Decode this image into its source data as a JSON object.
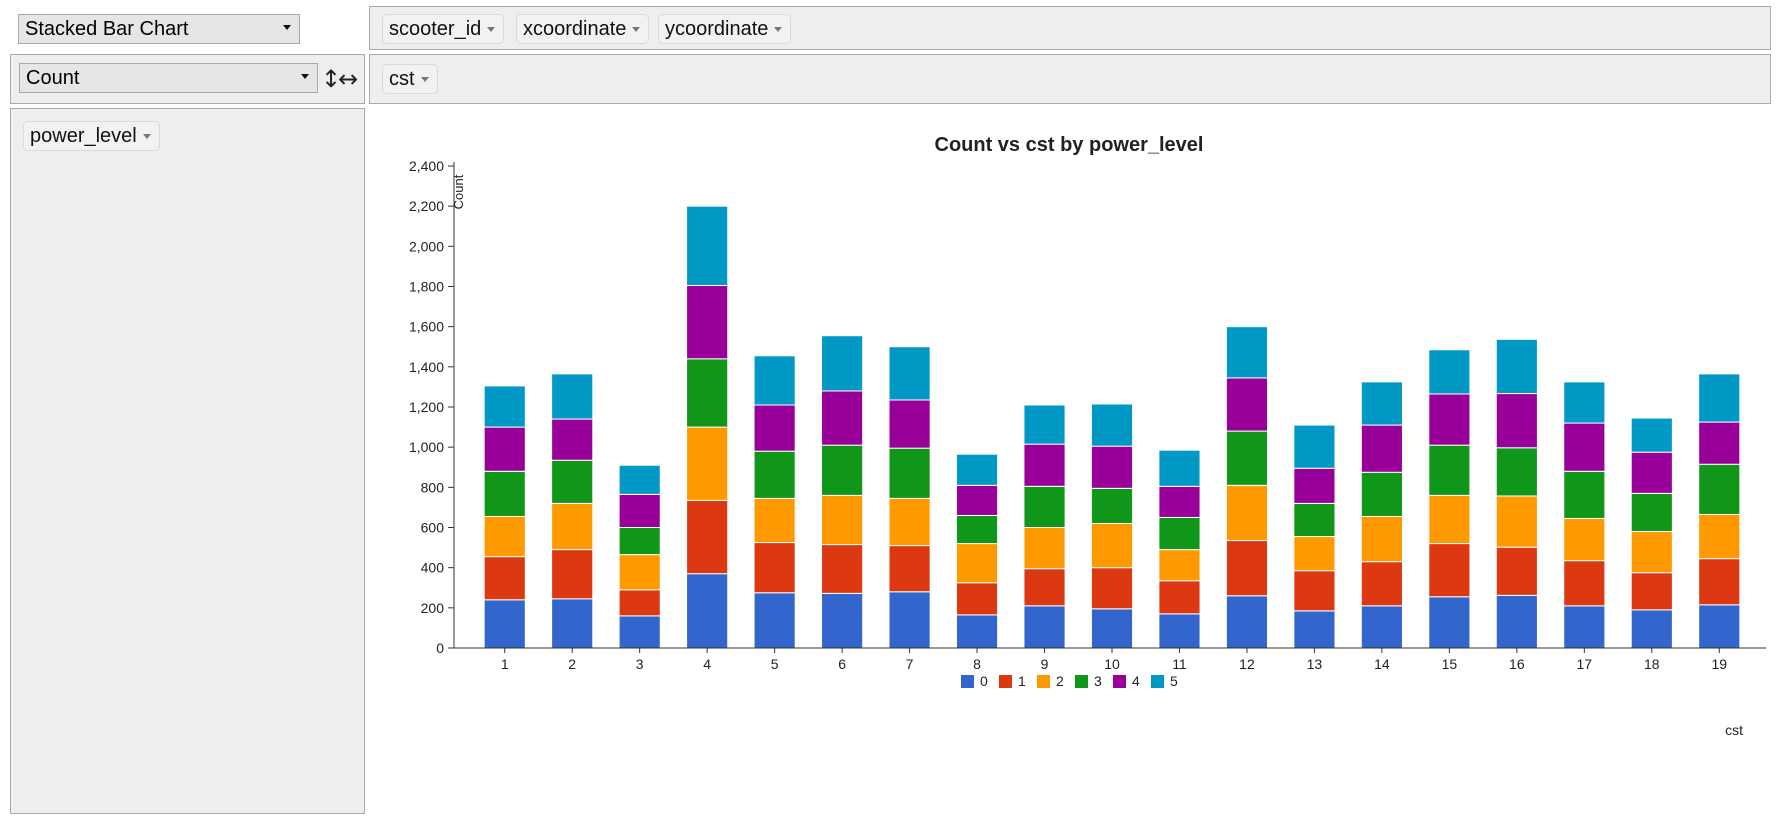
{
  "controls": {
    "renderer": "Stacked Bar Chart",
    "aggregator": "Count",
    "vertical_sort_icon": "↕",
    "horizontal_sort_icon": "↔",
    "unused_attrs": [
      "scooter_id",
      "xcoordinate",
      "ycoordinate"
    ],
    "col_attrs": [
      "cst"
    ],
    "row_attrs": [
      "power_level"
    ]
  },
  "colors": {
    "panel_bg": "#eeeeee",
    "series": [
      "#3366cc",
      "#dc3912",
      "#ff9900",
      "#109618",
      "#990099",
      "#0099c6"
    ]
  },
  "chart_data": {
    "type": "bar",
    "stacked": true,
    "title": "Count vs cst by power_level",
    "xlabel": "cst",
    "ylabel": "Count",
    "ylim": [
      0,
      2400
    ],
    "yticks": [
      0,
      200,
      400,
      600,
      800,
      1000,
      1200,
      1400,
      1600,
      1800,
      2000,
      2200,
      2400
    ],
    "yticklabels": [
      "0",
      "200",
      "400",
      "600",
      "800",
      "1,000",
      "1,200",
      "1,400",
      "1,600",
      "1,800",
      "2,000",
      "2,200",
      "2,400"
    ],
    "legend_position": "bottom",
    "categories": [
      "1",
      "2",
      "3",
      "4",
      "5",
      "6",
      "7",
      "8",
      "9",
      "10",
      "11",
      "12",
      "13",
      "14",
      "15",
      "16",
      "17",
      "18",
      "19"
    ],
    "series": [
      {
        "name": "0",
        "values": [
          240,
          245,
          160,
          370,
          275,
          272,
          280,
          165,
          210,
          195,
          170,
          260,
          185,
          210,
          255,
          262,
          210,
          190,
          215
        ]
      },
      {
        "name": "1",
        "values": [
          215,
          245,
          130,
          365,
          250,
          243,
          230,
          160,
          185,
          205,
          165,
          275,
          200,
          220,
          265,
          240,
          225,
          185,
          230
        ]
      },
      {
        "name": "2",
        "values": [
          200,
          230,
          175,
          365,
          220,
          245,
          235,
          195,
          205,
          220,
          155,
          275,
          170,
          225,
          240,
          255,
          210,
          205,
          220
        ]
      },
      {
        "name": "3",
        "values": [
          225,
          215,
          135,
          340,
          235,
          250,
          250,
          140,
          205,
          175,
          160,
          270,
          165,
          220,
          250,
          240,
          235,
          190,
          250
        ]
      },
      {
        "name": "4",
        "values": [
          220,
          205,
          165,
          365,
          230,
          270,
          240,
          150,
          210,
          210,
          155,
          265,
          175,
          235,
          255,
          270,
          240,
          205,
          210
        ]
      },
      {
        "name": "5",
        "values": [
          205,
          225,
          145,
          395,
          245,
          275,
          265,
          155,
          195,
          210,
          180,
          255,
          215,
          215,
          220,
          270,
          205,
          170,
          240
        ]
      }
    ]
  }
}
